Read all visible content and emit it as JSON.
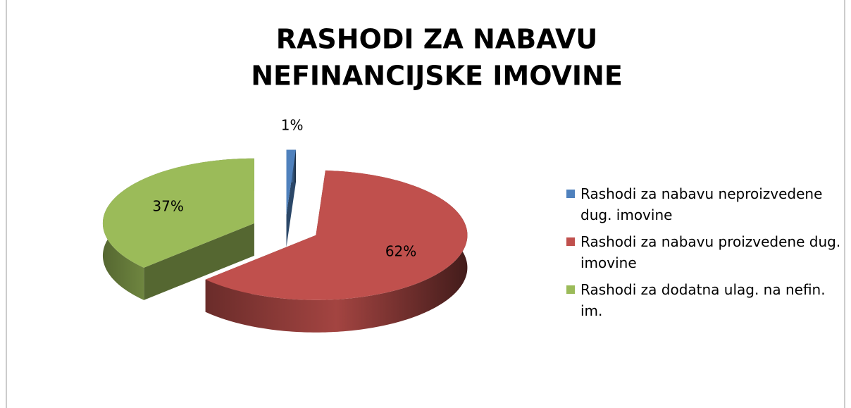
{
  "chart_data": {
    "type": "pie3d",
    "title": [
      "RASHODI ZA NABAVU",
      "NEFINANCIJSKE IMOVINE"
    ],
    "categories": [
      "Rashodi za nabavu neproizvedene dug. imovine",
      "Rashodi za nabavu proizvedene dug. imovine",
      "Rashodi za dodatna ulag. na nefin. im."
    ],
    "values": [
      1,
      62,
      37
    ],
    "value_labels": [
      "1%",
      "62%",
      "37%"
    ],
    "colors": [
      "#4f81bd",
      "#c0504d",
      "#9bbb59"
    ],
    "legend": "right"
  }
}
